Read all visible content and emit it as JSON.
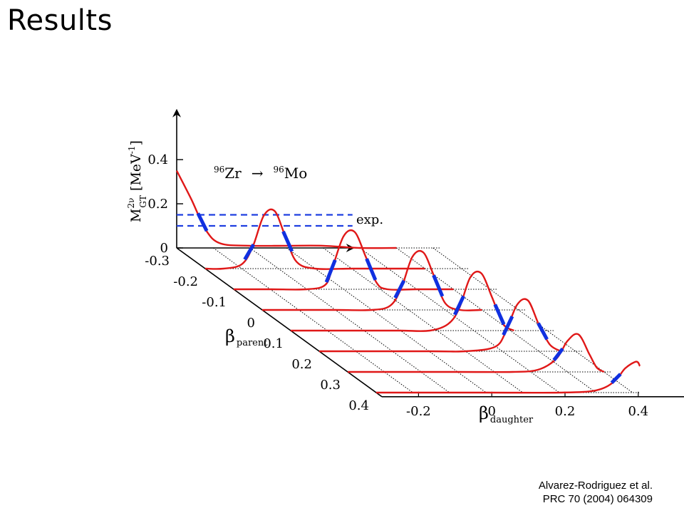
{
  "slide": {
    "title": "Results"
  },
  "citation": {
    "line1": "Alvarez-Rodriguez et al.",
    "line2": "PRC 70 (2004) 064309"
  },
  "chart_data": {
    "type": "line",
    "style": "3d-ribbon",
    "title": "",
    "reaction": {
      "parent_mass": "96",
      "parent_sym": "Zr",
      "arrow": "→",
      "daughter_mass": "96",
      "daughter_sym": "Mo"
    },
    "zlabel": {
      "main": "M",
      "sup": "2ν",
      "sub": "GT",
      "unit": " [MeV",
      "unit_sup": "-1",
      "unit_end": "]"
    },
    "xlabel": {
      "main": "β",
      "sub": "parent"
    },
    "ylabel": {
      "main": "β",
      "sub": "daughter"
    },
    "z_ticks": [
      "0",
      "0.2",
      "0.4"
    ],
    "parent_ticks": [
      "-0.3",
      "-0.2",
      "-0.1",
      "0",
      "0.1",
      "0.2",
      "0.3",
      "0.4"
    ],
    "daughter_ticks": [
      "-0.2",
      "0",
      "0.2",
      "0.4"
    ],
    "exp_band": {
      "label": "exp.",
      "low": 0.1,
      "high": 0.15,
      "color": "#1f3fe0"
    },
    "colors": {
      "curve": "#e01818",
      "overlap": "#1030e0",
      "axis": "#000000"
    },
    "series": [
      {
        "values": [
          [
            -0.3,
            0.35
          ],
          [
            -0.26,
            0.22
          ],
          [
            -0.22,
            0.08
          ],
          [
            -0.18,
            0.02
          ],
          [
            -0.1,
            0.01
          ],
          [
            0.0,
            0.01
          ],
          [
            0.1,
            0.01
          ],
          [
            0.2,
            0.0
          ],
          [
            0.3,
            0.0
          ]
        ],
        "exp_cross": [
          -0.23
        ]
      },
      {
        "values": [
          [
            -0.3,
            0.0
          ],
          [
            -0.25,
            0.0
          ],
          [
            -0.2,
            0.02
          ],
          [
            -0.17,
            0.1
          ],
          [
            -0.14,
            0.24
          ],
          [
            -0.11,
            0.26
          ],
          [
            -0.08,
            0.14
          ],
          [
            -0.05,
            0.03
          ],
          [
            0.0,
            0.0
          ],
          [
            0.1,
            0.0
          ],
          [
            0.2,
            0.0
          ],
          [
            0.3,
            0.0
          ]
        ],
        "exp_cross": [
          -0.18,
          -0.075
        ]
      },
      {
        "values": [
          [
            -0.3,
            0.0
          ],
          [
            -0.2,
            0.0
          ],
          [
            -0.1,
            0.0
          ],
          [
            -0.05,
            0.02
          ],
          [
            -0.03,
            0.1
          ],
          [
            0.0,
            0.24
          ],
          [
            0.03,
            0.26
          ],
          [
            0.06,
            0.15
          ],
          [
            0.09,
            0.03
          ],
          [
            0.12,
            0.0
          ],
          [
            0.2,
            0.0
          ],
          [
            0.3,
            0.0
          ]
        ],
        "exp_cross": [
          -0.035,
          0.075
        ]
      },
      {
        "values": [
          [
            -0.3,
            0.0
          ],
          [
            -0.2,
            0.0
          ],
          [
            -0.1,
            0.0
          ],
          [
            0.0,
            0.0
          ],
          [
            0.05,
            0.02
          ],
          [
            0.08,
            0.1
          ],
          [
            0.11,
            0.24
          ],
          [
            0.14,
            0.26
          ],
          [
            0.17,
            0.15
          ],
          [
            0.2,
            0.03
          ],
          [
            0.24,
            0.0
          ],
          [
            0.3,
            0.0
          ]
        ],
        "exp_cross": [
          0.075,
          0.18
        ]
      },
      {
        "values": [
          [
            -0.3,
            0.0
          ],
          [
            -0.1,
            0.0
          ],
          [
            0.0,
            0.0
          ],
          [
            0.08,
            0.0
          ],
          [
            0.13,
            0.03
          ],
          [
            0.16,
            0.1
          ],
          [
            0.19,
            0.24
          ],
          [
            0.22,
            0.26
          ],
          [
            0.25,
            0.15
          ],
          [
            0.28,
            0.03
          ],
          [
            0.31,
            0.0
          ]
        ],
        "exp_cross": [
          0.16,
          0.27
        ]
      },
      {
        "values": [
          [
            -0.3,
            0.0
          ],
          [
            0.0,
            0.0
          ],
          [
            0.1,
            0.0
          ],
          [
            0.18,
            0.02
          ],
          [
            0.21,
            0.09
          ],
          [
            0.24,
            0.21
          ],
          [
            0.27,
            0.23
          ],
          [
            0.3,
            0.12
          ],
          [
            0.33,
            0.03
          ],
          [
            0.36,
            0.0
          ]
        ],
        "exp_cross": [
          0.215,
          0.31
        ]
      },
      {
        "values": [
          [
            -0.3,
            0.0
          ],
          [
            0.0,
            0.0
          ],
          [
            0.15,
            0.0
          ],
          [
            0.22,
            0.01
          ],
          [
            0.27,
            0.06
          ],
          [
            0.3,
            0.14
          ],
          [
            0.33,
            0.17
          ],
          [
            0.36,
            0.08
          ],
          [
            0.38,
            0.02
          ],
          [
            0.4,
            0.0
          ]
        ],
        "exp_cross": [
          0.275
        ]
      },
      {
        "values": [
          [
            -0.3,
            0.0
          ],
          [
            0.0,
            0.0
          ],
          [
            0.2,
            0.0
          ],
          [
            0.3,
            0.01
          ],
          [
            0.35,
            0.05
          ],
          [
            0.38,
            0.11
          ],
          [
            0.41,
            0.14
          ],
          [
            0.42,
            0.12
          ]
        ],
        "exp_cross": [
          0.355
        ]
      }
    ]
  }
}
